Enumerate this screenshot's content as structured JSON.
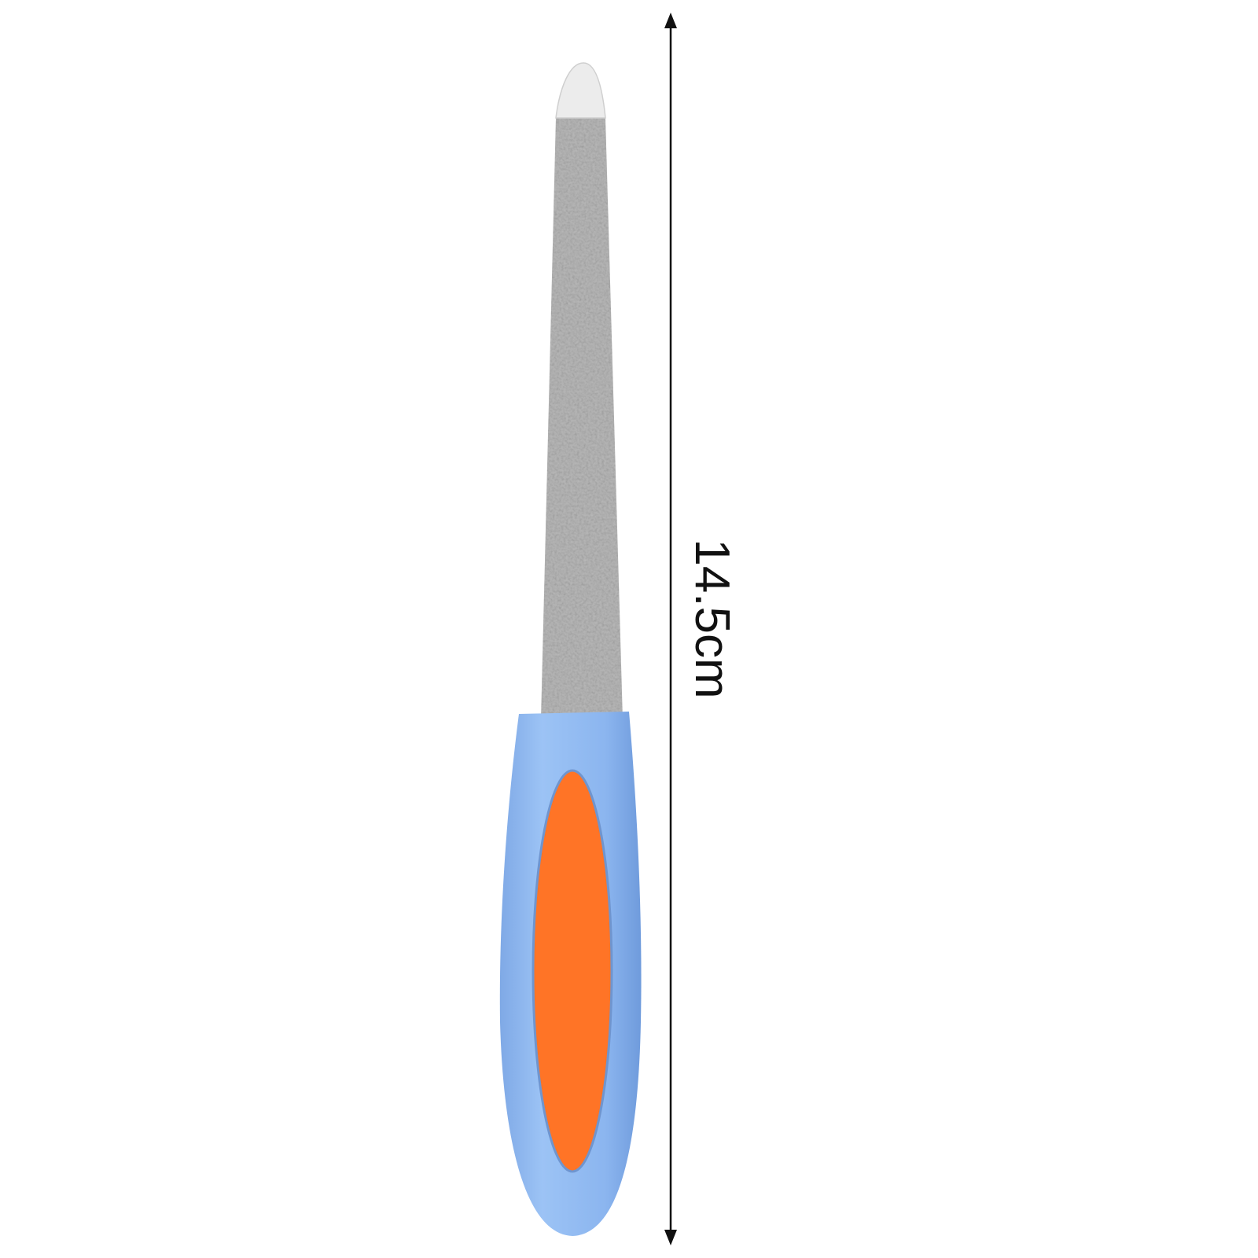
{
  "dimension": {
    "length_label": "14.5cm",
    "orientation": "vertical"
  },
  "product": {
    "name_icon": "nail-file",
    "colors": {
      "blade": "#b9b9b9",
      "tip": "#ececec",
      "handle": "#8fb8f0",
      "grip_insert": "#ff7426",
      "arrow": "#111111"
    }
  }
}
